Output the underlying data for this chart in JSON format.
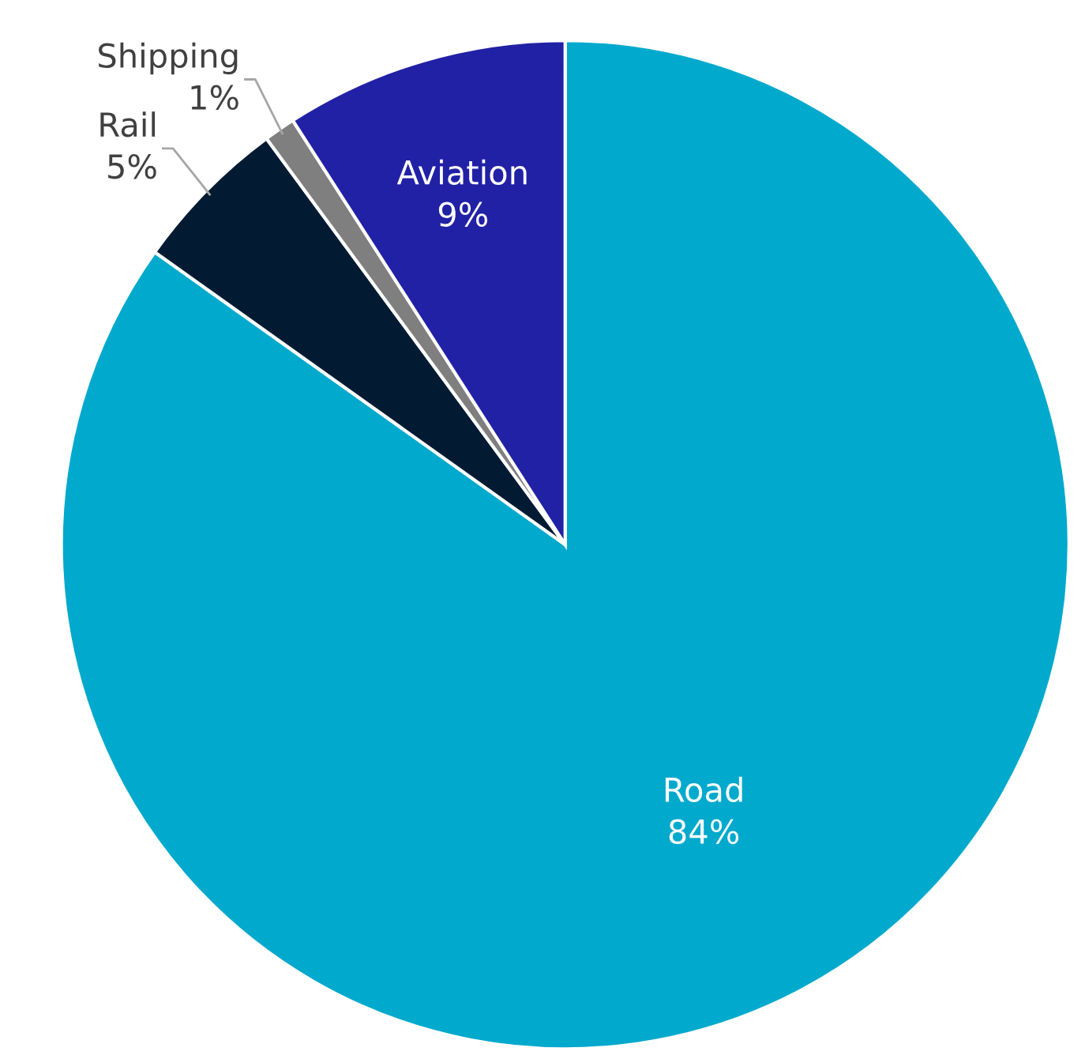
{
  "chart_data": {
    "type": "pie",
    "categories": [
      "Road",
      "Rail",
      "Shipping",
      "Aviation"
    ],
    "values": [
      84,
      5,
      1,
      9
    ],
    "colors": [
      "#01a9cd",
      "#021b33",
      "#7f7f7f",
      "#2121a6"
    ],
    "value_labels": [
      "84%",
      "5%",
      "1%",
      "9%"
    ]
  }
}
